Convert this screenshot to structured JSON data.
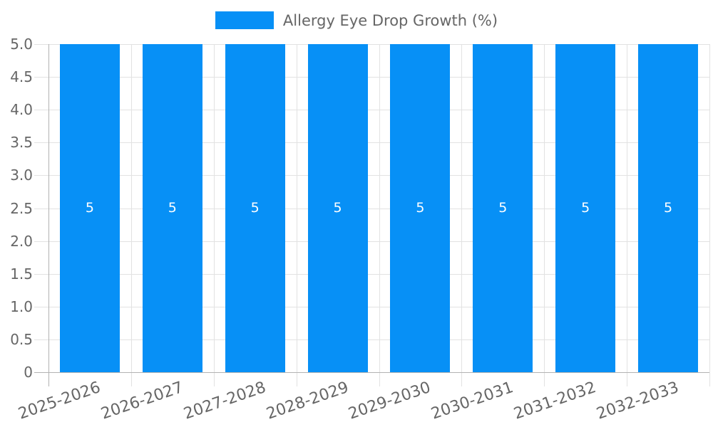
{
  "legend": {
    "label": "Allergy Eye Drop Growth (%)"
  },
  "chart_data": {
    "type": "bar",
    "title": "Allergy Eye Drop Growth (%)",
    "legend_label": "Allergy Eye Drop Growth (%)",
    "legend_position": "top-center",
    "categories": [
      "2025-2026",
      "2026-2027",
      "2027-2028",
      "2028-2029",
      "2029-2030",
      "2030-2031",
      "2031-2032",
      "2032-2033"
    ],
    "series": [
      {
        "name": "Allergy Eye Drop Growth (%)",
        "values": [
          5,
          5,
          5,
          5,
          5,
          5,
          5,
          5
        ]
      }
    ],
    "bar_value_labels": [
      "5",
      "5",
      "5",
      "5",
      "5",
      "5",
      "5",
      "5"
    ],
    "xlabel": "",
    "ylabel": "",
    "ylim": [
      0,
      5
    ],
    "ytick_step": 0.5,
    "ytick_labels": [
      "0",
      "0.5",
      "1.0",
      "1.5",
      "2.0",
      "2.5",
      "3.0",
      "3.5",
      "4.0",
      "4.5",
      "5.0"
    ],
    "grid": "on",
    "grid_style": "horizontal lines at every 0.5, vertical lines at category boundaries",
    "colors": {
      "bar": "#0790f6",
      "grid": "#e2e2e2",
      "axis": "#b3b3b3",
      "text": "#666666",
      "bar_label": "#ffffff"
    }
  }
}
